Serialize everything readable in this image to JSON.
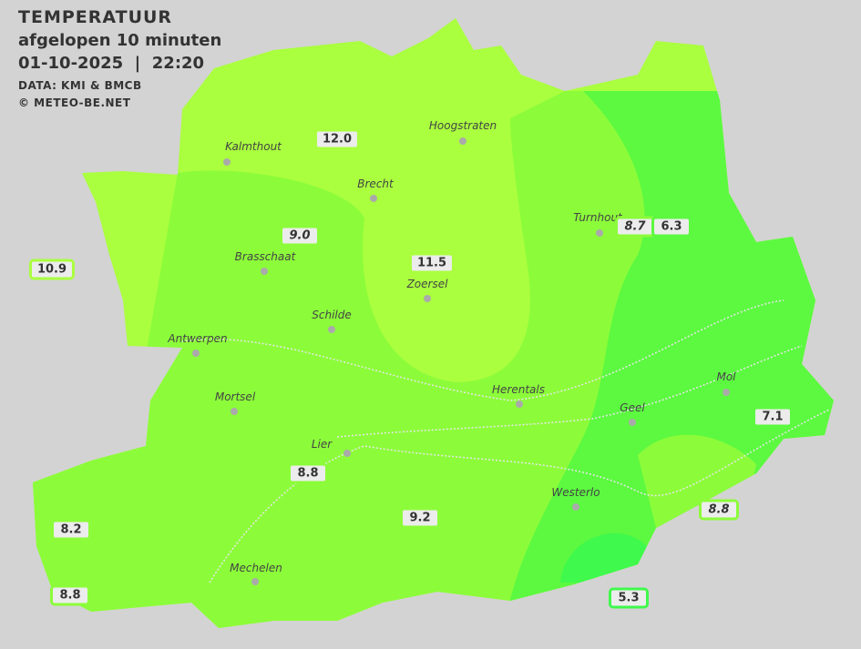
{
  "header": {
    "title": "TEMPERATUUR",
    "subtitle": "afgelopen 10 minuten",
    "datetime": "01-10-2025  |  22:20",
    "data_source": "DATA: KMI & BMCB",
    "copyright": "© METEO-BE.NET"
  },
  "colors": {
    "background": "#d3d3d3",
    "zone_warm": "#aaff3f",
    "zone_mid": "#8cfc3a",
    "zone_cool": "#5cf940",
    "zone_cold": "#3ff94c"
  },
  "cities": [
    {
      "name": "Kalmthout"
    },
    {
      "name": "Hoogstraten"
    },
    {
      "name": "Brecht"
    },
    {
      "name": "Turnhout"
    },
    {
      "name": "Brasschaat"
    },
    {
      "name": "Zoersel"
    },
    {
      "name": "Schilde"
    },
    {
      "name": "Antwerpen"
    },
    {
      "name": "Mortsel"
    },
    {
      "name": "Herentals"
    },
    {
      "name": "Mol"
    },
    {
      "name": "Geel"
    },
    {
      "name": "Lier"
    },
    {
      "name": "Westerlo"
    },
    {
      "name": "Mechelen"
    }
  ],
  "stations": [
    {
      "value": "12.0",
      "italic": false,
      "color": "#aaff3f"
    },
    {
      "value": "9.0",
      "italic": true,
      "color": "#8cfc3a"
    },
    {
      "value": "11.5",
      "italic": false,
      "color": "#aaff3f"
    },
    {
      "value": "8.7",
      "italic": true,
      "color": "#8cfc3a"
    },
    {
      "value": "6.3",
      "italic": false,
      "color": "#5cf940"
    },
    {
      "value": "10.9",
      "italic": false,
      "color": "#aaff3f"
    },
    {
      "value": "7.1",
      "italic": false,
      "color": "#5cf940"
    },
    {
      "value": "8.8",
      "italic": false,
      "color": "#8cfc3a"
    },
    {
      "value": "8.8",
      "italic": true,
      "color": "#8cfc3a"
    },
    {
      "value": "8.2",
      "italic": false,
      "color": "#8cfc3a"
    },
    {
      "value": "9.2",
      "italic": false,
      "color": "#8cfc3a"
    },
    {
      "value": "8.8",
      "italic": false,
      "color": "#8cfc3a"
    },
    {
      "value": "5.3",
      "italic": false,
      "color": "#3ff94c"
    }
  ]
}
